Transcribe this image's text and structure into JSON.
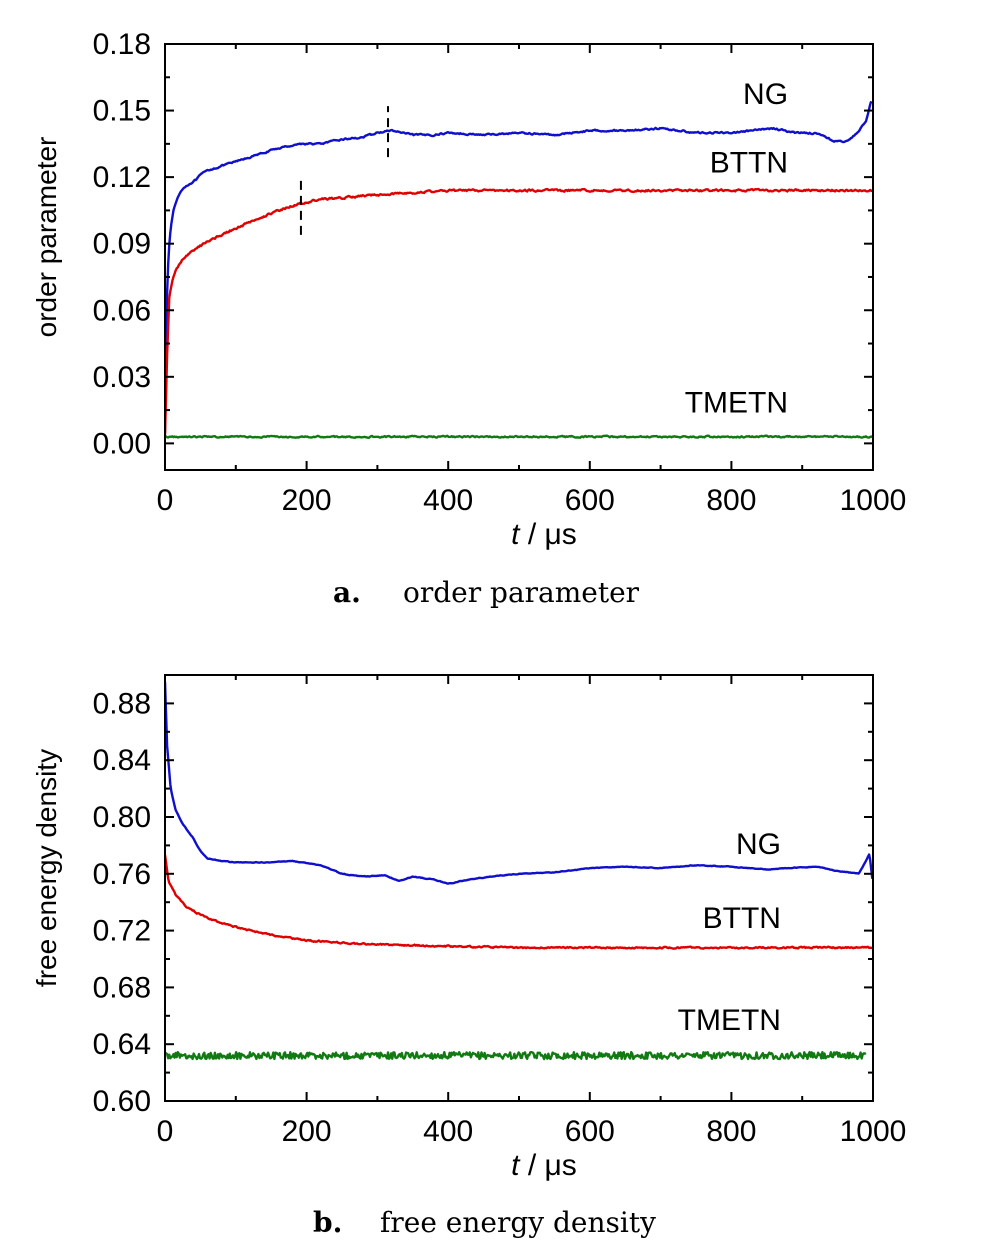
{
  "chart_data": [
    {
      "type": "line",
      "panel_letter": "a.",
      "caption": "order parameter",
      "xlabel_var": "t",
      "xlabel_unit": " / μs",
      "ylabel": "order parameter",
      "xlim": [
        0,
        1000
      ],
      "ylim": [
        -0.012,
        0.18
      ],
      "xticks": [
        0,
        200,
        400,
        600,
        800,
        1000
      ],
      "yticks": [
        0.0,
        0.03,
        0.06,
        0.09,
        0.12,
        0.15,
        0.18
      ],
      "ytick_decimals": 2,
      "grid": false,
      "series": [
        {
          "name": "NG",
          "color": "#1010cc",
          "noise": 0.0006,
          "label_at": [
            880,
            0.153
          ],
          "x": [
            0,
            2,
            5,
            8,
            12,
            18,
            25,
            35,
            45,
            50,
            60,
            80,
            100,
            130,
            160,
            190,
            220,
            250,
            280,
            300,
            320,
            350,
            380,
            400,
            450,
            500,
            550,
            600,
            650,
            700,
            750,
            800,
            830,
            860,
            890,
            910,
            930,
            945,
            960,
            975,
            990,
            998
          ],
          "y": [
            0.005,
            0.06,
            0.085,
            0.097,
            0.105,
            0.111,
            0.115,
            0.117,
            0.119,
            0.121,
            0.123,
            0.125,
            0.127,
            0.13,
            0.133,
            0.135,
            0.135,
            0.137,
            0.138,
            0.14,
            0.141,
            0.139,
            0.139,
            0.14,
            0.139,
            0.14,
            0.139,
            0.141,
            0.141,
            0.142,
            0.14,
            0.14,
            0.141,
            0.142,
            0.14,
            0.14,
            0.139,
            0.136,
            0.136,
            0.139,
            0.145,
            0.155
          ]
        },
        {
          "name": "BTTN",
          "color": "#e00000",
          "noise": 0.0008,
          "label_at": [
            880,
            0.122
          ],
          "x": [
            0,
            3,
            6,
            10,
            15,
            25,
            40,
            60,
            80,
            100,
            130,
            160,
            190,
            220,
            260,
            300,
            350,
            400,
            500,
            600,
            700,
            800,
            900,
            1000
          ],
          "y": [
            0.004,
            0.04,
            0.065,
            0.073,
            0.078,
            0.083,
            0.087,
            0.091,
            0.094,
            0.097,
            0.101,
            0.105,
            0.108,
            0.11,
            0.111,
            0.112,
            0.113,
            0.114,
            0.114,
            0.114,
            0.114,
            0.114,
            0.114,
            0.114
          ]
        },
        {
          "name": "TMETN",
          "color": "#127a12",
          "noise": 0.0006,
          "label_at": [
            880,
            0.014
          ],
          "x": [
            0,
            1000
          ],
          "y": [
            0.003,
            0.003
          ]
        }
      ],
      "markers": [
        {
          "x": 315,
          "y0": 0.129,
          "y1": 0.152
        },
        {
          "x": 192,
          "y0": 0.094,
          "y1": 0.119
        }
      ]
    },
    {
      "type": "line",
      "panel_letter": "b.",
      "caption": "free energy density",
      "xlabel_var": "t",
      "xlabel_unit": " / μs",
      "ylabel": "free energy density",
      "xlim": [
        0,
        1000
      ],
      "ylim": [
        0.6,
        0.9
      ],
      "xticks": [
        0,
        200,
        400,
        600,
        800,
        1000
      ],
      "yticks": [
        0.6,
        0.64,
        0.68,
        0.72,
        0.76,
        0.8,
        0.84,
        0.88
      ],
      "ytick_decimals": 2,
      "grid": false,
      "series": [
        {
          "name": "NG",
          "color": "#1010cc",
          "noise": 0.0004,
          "label_at": [
            870,
            0.774
          ],
          "x": [
            0,
            3,
            8,
            15,
            25,
            40,
            50,
            60,
            80,
            100,
            140,
            180,
            220,
            250,
            280,
            310,
            330,
            350,
            380,
            400,
            430,
            460,
            500,
            550,
            600,
            650,
            700,
            750,
            800,
            850,
            880,
            920,
            950,
            980,
            995,
            1000
          ],
          "y": [
            0.895,
            0.85,
            0.82,
            0.805,
            0.795,
            0.785,
            0.776,
            0.771,
            0.769,
            0.768,
            0.768,
            0.769,
            0.766,
            0.76,
            0.758,
            0.759,
            0.755,
            0.758,
            0.756,
            0.753,
            0.756,
            0.758,
            0.76,
            0.761,
            0.764,
            0.765,
            0.764,
            0.766,
            0.765,
            0.763,
            0.764,
            0.765,
            0.762,
            0.76,
            0.774,
            0.752
          ]
        },
        {
          "name": "BTTN",
          "color": "#e00000",
          "noise": 0.0009,
          "label_at": [
            870,
            0.722
          ],
          "x": [
            0,
            5,
            15,
            30,
            50,
            80,
            120,
            160,
            200,
            260,
            320,
            400,
            500,
            600,
            700,
            800,
            900,
            1000
          ],
          "y": [
            0.773,
            0.755,
            0.745,
            0.737,
            0.731,
            0.725,
            0.72,
            0.716,
            0.713,
            0.711,
            0.71,
            0.709,
            0.708,
            0.708,
            0.708,
            0.708,
            0.708,
            0.708
          ]
        },
        {
          "name": "TMETN",
          "color": "#127a12",
          "noise": 0.0024,
          "label_at": [
            870,
            0.65
          ],
          "x": [
            0,
            990
          ],
          "y": [
            0.632,
            0.632
          ]
        }
      ],
      "markers": []
    }
  ]
}
